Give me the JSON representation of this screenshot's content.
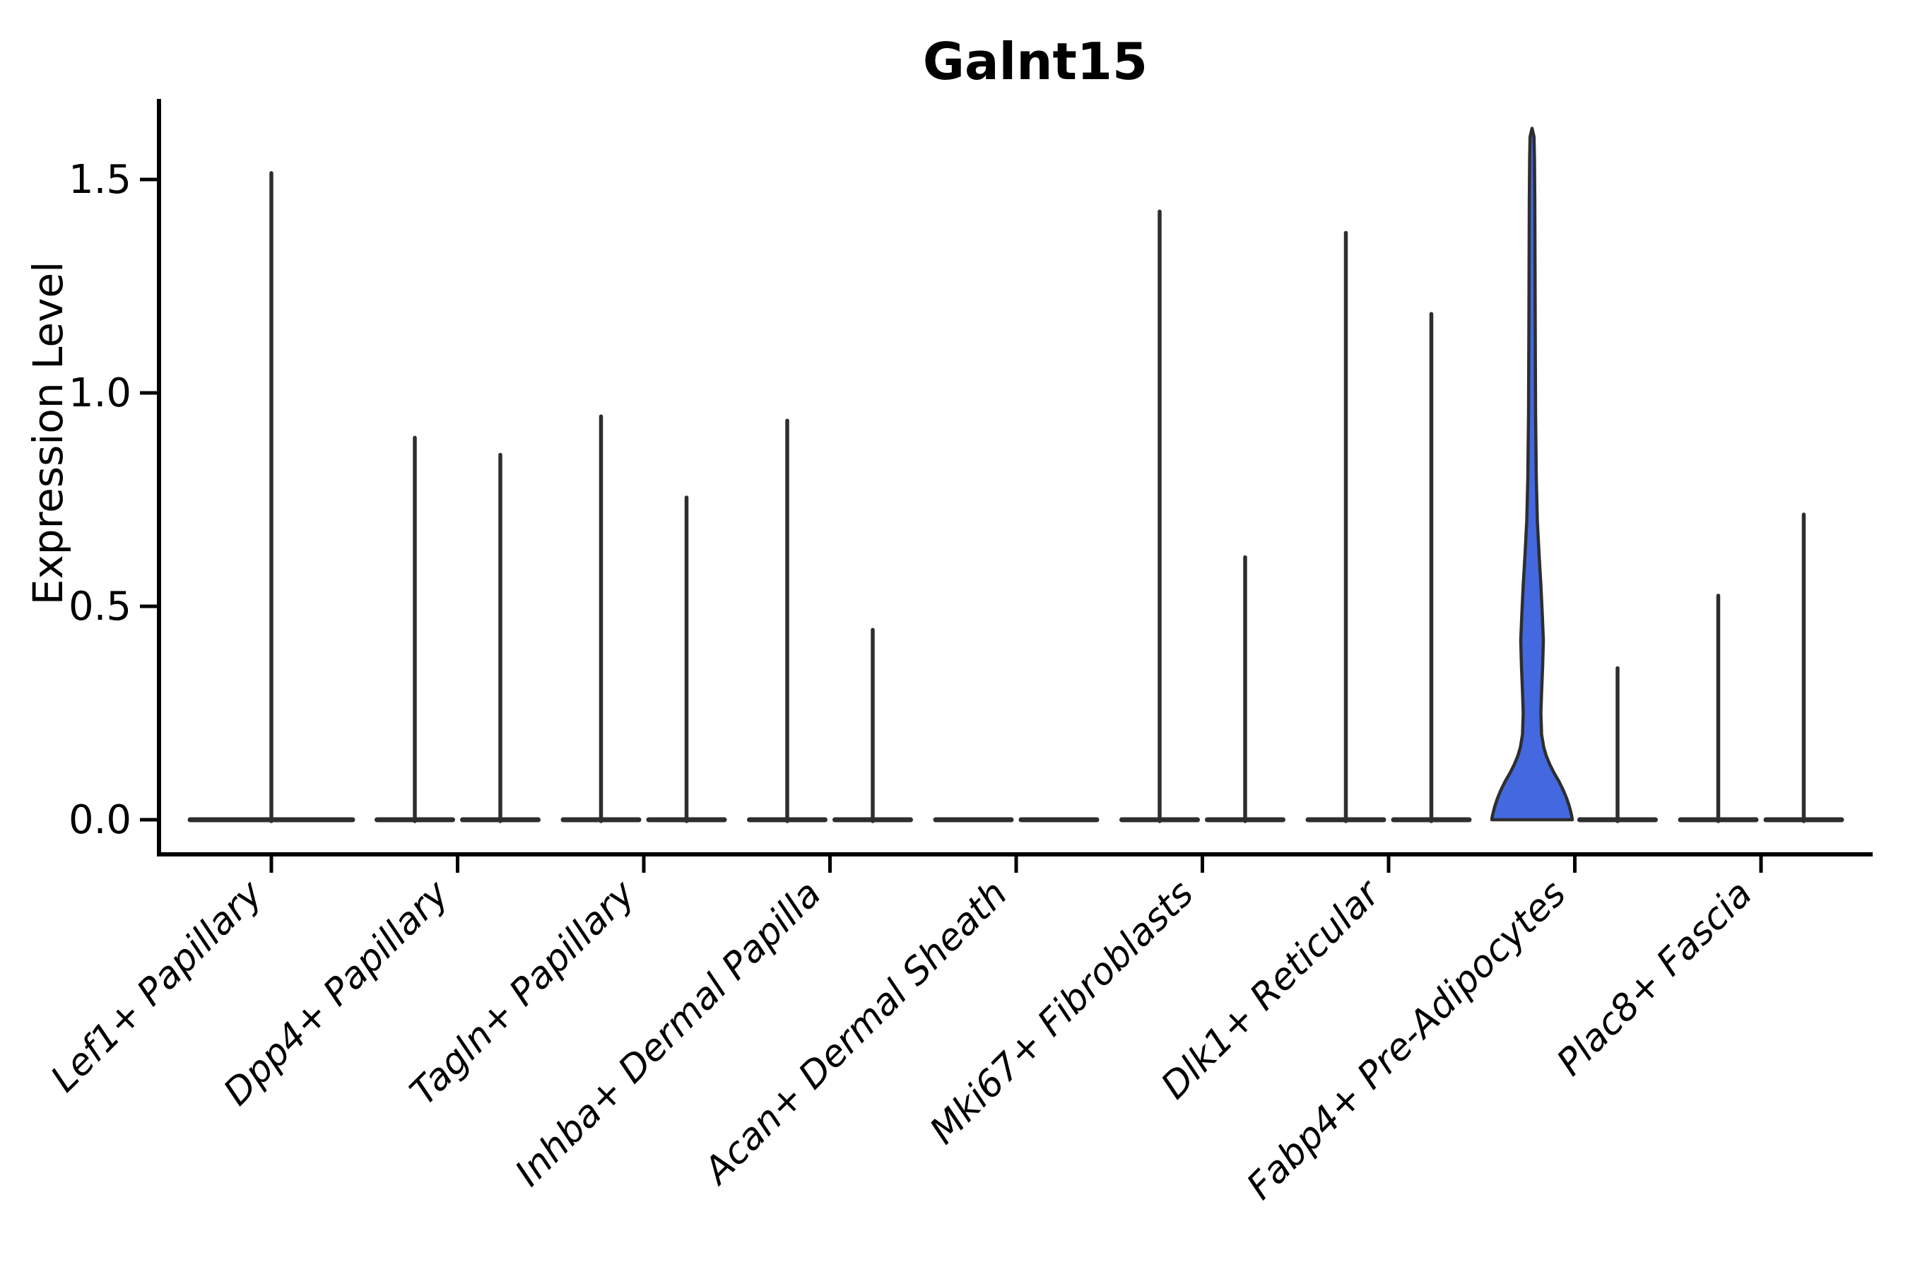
{
  "chart_data": {
    "type": "violin",
    "title": "Galnt15",
    "ylabel": "Expression Level",
    "xlabel": "",
    "ylim": [
      -0.08,
      1.68
    ],
    "ytick_values": [
      0.0,
      0.5,
      1.0,
      1.5
    ],
    "ytick_labels": [
      "0.0",
      "0.5",
      "1.0",
      "1.5"
    ],
    "grid": false,
    "legend": "none",
    "line_color": "#2e2e2e",
    "axis_color": "#000000",
    "accent_color": "#4468e0",
    "categories": [
      "Lef1+ Papillary",
      "Dpp4+ Papillary",
      "Tagln+ Papillary",
      "Inhba+ Dermal Papilla",
      "Acan+ Dermal Sheath",
      "Mki67+ Fibroblasts",
      "Dlk1+ Reticular",
      "Fabp4+ Pre-Adipocytes",
      "Plac8+ Fascia"
    ],
    "groups": [
      {
        "category": "Lef1+ Papillary",
        "violins": [
          {
            "pos": "center",
            "max": 1.52
          }
        ]
      },
      {
        "category": "Dpp4+ Papillary",
        "violins": [
          {
            "pos": "left",
            "max": 0.9
          },
          {
            "pos": "right",
            "max": 0.86
          }
        ]
      },
      {
        "category": "Tagln+ Papillary",
        "violins": [
          {
            "pos": "left",
            "max": 0.95
          },
          {
            "pos": "right",
            "max": 0.76
          }
        ]
      },
      {
        "category": "Inhba+ Dermal Papilla",
        "violins": [
          {
            "pos": "left",
            "max": 0.94
          },
          {
            "pos": "right",
            "max": 0.45
          }
        ]
      },
      {
        "category": "Acan+ Dermal Sheath",
        "violins": [
          {
            "pos": "left",
            "max": 0
          },
          {
            "pos": "right",
            "max": 0
          }
        ]
      },
      {
        "category": "Mki67+ Fibroblasts",
        "violins": [
          {
            "pos": "left",
            "max": 1.43
          },
          {
            "pos": "right",
            "max": 0.62
          }
        ]
      },
      {
        "category": "Dlk1+ Reticular",
        "violins": [
          {
            "pos": "left",
            "max": 1.38
          },
          {
            "pos": "right",
            "max": 1.19
          }
        ]
      },
      {
        "category": "Fabp4+ Pre-Adipocytes",
        "violins": [
          {
            "pos": "left",
            "max": 1.62,
            "filled": true,
            "profile": [
              [
                0.0,
                57.0
              ],
              [
                0.01,
                56.0
              ],
              [
                0.03,
                53.0
              ],
              [
                0.05,
                49.0
              ],
              [
                0.07,
                44.0
              ],
              [
                0.09,
                38.0
              ],
              [
                0.11,
                31.0
              ],
              [
                0.13,
                25.0
              ],
              [
                0.15,
                20.0
              ],
              [
                0.17,
                16.5
              ],
              [
                0.2,
                13.5
              ],
              [
                0.25,
                12.5
              ],
              [
                0.3,
                13.5
              ],
              [
                0.36,
                15.0
              ],
              [
                0.42,
                16.0
              ],
              [
                0.48,
                14.5
              ],
              [
                0.55,
                12.5
              ],
              [
                0.62,
                10.0
              ],
              [
                0.7,
                7.5
              ],
              [
                0.8,
                6.0
              ],
              [
                0.95,
                5.0
              ],
              [
                1.1,
                4.6
              ],
              [
                1.3,
                4.2
              ],
              [
                1.45,
                3.9
              ],
              [
                1.55,
                3.4
              ],
              [
                1.6,
                2.8
              ],
              [
                1.62,
                0.0
              ]
            ]
          },
          {
            "pos": "right",
            "max": 0.36
          }
        ]
      },
      {
        "category": "Plac8+ Fascia",
        "violins": [
          {
            "pos": "left",
            "max": 0.53
          },
          {
            "pos": "right",
            "max": 0.72
          }
        ]
      }
    ]
  }
}
